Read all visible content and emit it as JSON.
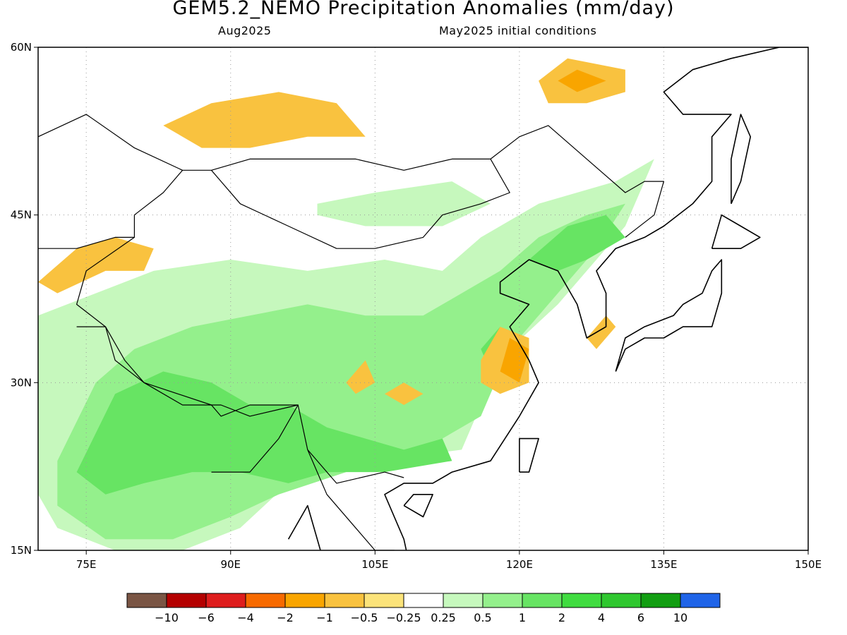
{
  "title": "GEM5.2_NEMO Precipitation Anomalies (mm/day)",
  "subtitle_left": "Aug2025",
  "subtitle_right": "May2025 initial conditions",
  "map": {
    "lon_range": [
      70,
      150
    ],
    "lat_range": [
      15,
      60
    ],
    "x_ticks": [
      {
        "lon": 75,
        "label": "75E"
      },
      {
        "lon": 90,
        "label": "90E"
      },
      {
        "lon": 105,
        "label": "105E"
      },
      {
        "lon": 120,
        "label": "120E"
      },
      {
        "lon": 135,
        "label": "135E"
      },
      {
        "lon": 150,
        "label": "150E"
      }
    ],
    "y_ticks": [
      {
        "lat": 60,
        "label": "60N"
      },
      {
        "lat": 45,
        "label": "45N"
      },
      {
        "lat": 30,
        "label": "30N"
      },
      {
        "lat": 15,
        "label": "15N"
      }
    ],
    "gridlines": "dotted"
  },
  "colorbar": {
    "colors": [
      "#7a5544",
      "#b40000",
      "#de1d1d",
      "#f76a00",
      "#f9a500",
      "#f9c23f",
      "#fbe37a",
      "#ffffff",
      "#c6f8bd",
      "#94f08c",
      "#67e463",
      "#40dc40",
      "#2fc72f",
      "#129e12",
      "#1f64e8"
    ],
    "labels": [
      "-10",
      "-6",
      "-4",
      "-2",
      "-1",
      "-0.5",
      "-0.25",
      "0.25",
      "0.5",
      "1",
      "2",
      "4",
      "6",
      "10"
    ]
  },
  "anomaly_patches": [
    {
      "level": "0.5",
      "color": "#c6f8bd",
      "lonlat": [
        [
          70,
          36
        ],
        [
          76,
          38
        ],
        [
          82,
          40
        ],
        [
          90,
          41
        ],
        [
          98,
          40
        ],
        [
          106,
          41
        ],
        [
          112,
          40
        ],
        [
          116,
          43
        ],
        [
          122,
          46
        ],
        [
          130,
          48
        ],
        [
          134,
          50
        ],
        [
          131,
          44
        ],
        [
          128,
          41
        ],
        [
          124,
          37
        ],
        [
          119,
          33
        ],
        [
          116,
          28
        ],
        [
          114,
          24
        ],
        [
          105,
          23
        ],
        [
          96,
          21
        ],
        [
          91,
          17
        ],
        [
          85,
          15
        ],
        [
          78,
          15
        ],
        [
          72,
          17
        ],
        [
          70,
          20
        ]
      ]
    },
    {
      "level": "0.5",
      "color": "#c6f8bd",
      "lonlat": [
        [
          99,
          46
        ],
        [
          105,
          47
        ],
        [
          113,
          48
        ],
        [
          117,
          46
        ],
        [
          112,
          44
        ],
        [
          104,
          44
        ],
        [
          99,
          45
        ]
      ]
    },
    {
      "level": "1",
      "color": "#94f08c",
      "lonlat": [
        [
          72,
          23
        ],
        [
          76,
          30
        ],
        [
          80,
          33
        ],
        [
          86,
          35
        ],
        [
          92,
          36
        ],
        [
          98,
          37
        ],
        [
          104,
          36
        ],
        [
          110,
          36
        ],
        [
          114,
          38
        ],
        [
          118,
          40
        ],
        [
          122,
          43
        ],
        [
          127,
          45
        ],
        [
          131,
          46
        ],
        [
          128,
          42
        ],
        [
          123,
          37
        ],
        [
          119,
          33
        ],
        [
          116,
          27
        ],
        [
          110,
          24
        ],
        [
          102,
          22
        ],
        [
          95,
          20
        ],
        [
          90,
          18
        ],
        [
          84,
          16
        ],
        [
          77,
          16
        ],
        [
          72,
          19
        ]
      ]
    },
    {
      "level": "2",
      "color": "#67e463",
      "lonlat": [
        [
          74,
          22
        ],
        [
          78,
          29
        ],
        [
          83,
          31
        ],
        [
          88,
          30
        ],
        [
          92,
          28
        ],
        [
          96,
          28
        ],
        [
          100,
          26
        ],
        [
          104,
          25
        ],
        [
          108,
          24
        ],
        [
          112,
          25
        ],
        [
          113,
          23
        ],
        [
          106,
          22
        ],
        [
          100,
          22
        ],
        [
          96,
          21
        ],
        [
          91,
          22
        ],
        [
          86,
          22
        ],
        [
          81,
          21
        ],
        [
          77,
          20
        ]
      ]
    },
    {
      "level": "2",
      "color": "#67e463",
      "lonlat": [
        [
          121,
          41
        ],
        [
          125,
          44
        ],
        [
          129,
          45
        ],
        [
          131,
          43
        ],
        [
          127,
          41
        ],
        [
          124,
          40
        ]
      ]
    },
    {
      "level": "2",
      "color": "#67e463",
      "lonlat": [
        [
          116,
          33
        ],
        [
          118,
          35
        ],
        [
          119,
          33
        ],
        [
          117,
          31
        ]
      ]
    },
    {
      "level": "-0.5",
      "color": "#f9c23f",
      "lonlat": [
        [
          83,
          53
        ],
        [
          88,
          55
        ],
        [
          95,
          56
        ],
        [
          101,
          55
        ],
        [
          104,
          52
        ],
        [
          98,
          52
        ],
        [
          92,
          51
        ],
        [
          87,
          51
        ]
      ]
    },
    {
      "level": "-0.5",
      "color": "#f9c23f",
      "lonlat": [
        [
          122,
          57
        ],
        [
          125,
          59
        ],
        [
          131,
          58
        ],
        [
          131,
          56
        ],
        [
          127,
          55
        ],
        [
          123,
          55
        ]
      ]
    },
    {
      "level": "-0.5",
      "color": "#f9c23f",
      "lonlat": [
        [
          70,
          39
        ],
        [
          74,
          42
        ],
        [
          78,
          43
        ],
        [
          82,
          42
        ],
        [
          81,
          40
        ],
        [
          77,
          40
        ],
        [
          72,
          38
        ]
      ]
    },
    {
      "level": "-0.5",
      "color": "#f9c23f",
      "lonlat": [
        [
          116,
          32
        ],
        [
          118,
          35
        ],
        [
          121,
          34
        ],
        [
          121,
          30
        ],
        [
          118,
          29
        ],
        [
          116,
          30
        ]
      ]
    },
    {
      "level": "-0.5",
      "color": "#f9c23f",
      "lonlat": [
        [
          102,
          30
        ],
        [
          104,
          32
        ],
        [
          105,
          30
        ],
        [
          103,
          29
        ]
      ]
    },
    {
      "level": "-0.5",
      "color": "#f9c23f",
      "lonlat": [
        [
          106,
          29
        ],
        [
          108,
          30
        ],
        [
          110,
          29
        ],
        [
          108,
          28
        ]
      ]
    },
    {
      "level": "-0.5",
      "color": "#f9c23f",
      "lonlat": [
        [
          127,
          34
        ],
        [
          129,
          36
        ],
        [
          130,
          35
        ],
        [
          128,
          33
        ]
      ]
    },
    {
      "level": "-1",
      "color": "#f9a500",
      "lonlat": [
        [
          118,
          31
        ],
        [
          119,
          34
        ],
        [
          121,
          33
        ],
        [
          120,
          30
        ]
      ]
    },
    {
      "level": "-1",
      "color": "#f9a500",
      "lonlat": [
        [
          124,
          57
        ],
        [
          126,
          58
        ],
        [
          129,
          57
        ],
        [
          126,
          56
        ]
      ]
    }
  ],
  "coastlines": [
    {
      "name": "asia-mainland-coast",
      "lonlat": [
        [
          96,
          16
        ],
        [
          98,
          19
        ],
        [
          100,
          13
        ],
        [
          102,
          13
        ],
        [
          105,
          10
        ],
        [
          106,
          12
        ],
        [
          109,
          12
        ],
        [
          108,
          16
        ],
        [
          106,
          20
        ],
        [
          108,
          21
        ],
        [
          111,
          21
        ],
        [
          113,
          22
        ],
        [
          117,
          23
        ],
        [
          120,
          27
        ],
        [
          122,
          30
        ],
        [
          121,
          32
        ],
        [
          119,
          35
        ],
        [
          121,
          37
        ],
        [
          118,
          38
        ],
        [
          118,
          39
        ],
        [
          121,
          41
        ],
        [
          124,
          40
        ],
        [
          126,
          37
        ],
        [
          127,
          34
        ],
        [
          129,
          35
        ],
        [
          129,
          38
        ],
        [
          128,
          40
        ],
        [
          130,
          42
        ],
        [
          133,
          43
        ],
        [
          135,
          44
        ],
        [
          138,
          46
        ],
        [
          140,
          48
        ],
        [
          140,
          52
        ],
        [
          142,
          54
        ],
        [
          137,
          54
        ],
        [
          135,
          56
        ],
        [
          138,
          58
        ],
        [
          142,
          59
        ],
        [
          147,
          60
        ],
        [
          150,
          60
        ]
      ]
    },
    {
      "name": "japan-coast",
      "lonlat": [
        [
          130,
          31
        ],
        [
          131,
          33
        ],
        [
          133,
          34
        ],
        [
          135,
          34
        ],
        [
          137,
          35
        ],
        [
          140,
          35
        ],
        [
          141,
          38
        ],
        [
          141,
          41
        ],
        [
          140,
          40
        ],
        [
          139,
          38
        ],
        [
          137,
          37
        ],
        [
          136,
          36
        ],
        [
          133,
          35
        ],
        [
          131,
          34
        ],
        [
          130,
          31
        ]
      ]
    },
    {
      "name": "hokkaido-coast",
      "lonlat": [
        [
          140,
          42
        ],
        [
          141,
          45
        ],
        [
          143,
          44
        ],
        [
          145,
          43
        ],
        [
          143,
          42
        ],
        [
          140,
          42
        ]
      ]
    },
    {
      "name": "sakhalin-coast",
      "lonlat": [
        [
          142,
          46
        ],
        [
          142,
          50
        ],
        [
          143,
          54
        ],
        [
          144,
          52
        ],
        [
          143,
          48
        ],
        [
          142,
          46
        ]
      ]
    },
    {
      "name": "taiwan-coast",
      "lonlat": [
        [
          120,
          22
        ],
        [
          120,
          25
        ],
        [
          122,
          25
        ],
        [
          121,
          22
        ],
        [
          120,
          22
        ]
      ]
    },
    {
      "name": "hainan-coast",
      "lonlat": [
        [
          108,
          19
        ],
        [
          109,
          20
        ],
        [
          111,
          20
        ],
        [
          110,
          18
        ],
        [
          108,
          19
        ]
      ]
    }
  ],
  "borders": [
    {
      "name": "russia-southern-border",
      "lonlat": [
        [
          70,
          52
        ],
        [
          75,
          54
        ],
        [
          80,
          51
        ],
        [
          85,
          49
        ],
        [
          88,
          49
        ],
        [
          92,
          50
        ],
        [
          97,
          50
        ],
        [
          103,
          50
        ],
        [
          108,
          49
        ],
        [
          113,
          50
        ],
        [
          117,
          50
        ],
        [
          120,
          52
        ],
        [
          123,
          53
        ],
        [
          127,
          50
        ],
        [
          131,
          47
        ],
        [
          133,
          48
        ],
        [
          135,
          48
        ],
        [
          134,
          45
        ],
        [
          131,
          43
        ]
      ]
    },
    {
      "name": "mongolia-china-border",
      "lonlat": [
        [
          88,
          49
        ],
        [
          91,
          46
        ],
        [
          96,
          44
        ],
        [
          101,
          42
        ],
        [
          105,
          42
        ],
        [
          110,
          43
        ],
        [
          112,
          45
        ],
        [
          116,
          46
        ],
        [
          119,
          47
        ],
        [
          117,
          50
        ]
      ]
    },
    {
      "name": "china-west-border",
      "lonlat": [
        [
          80,
          43
        ],
        [
          75,
          40
        ],
        [
          74,
          37
        ],
        [
          77,
          35
        ],
        [
          79,
          32
        ],
        [
          81,
          30
        ],
        [
          85,
          28
        ],
        [
          89,
          28
        ],
        [
          92,
          27
        ],
        [
          97,
          28
        ],
        [
          98,
          24
        ],
        [
          101,
          21
        ],
        [
          106,
          22
        ],
        [
          108,
          21.5
        ]
      ]
    },
    {
      "name": "india-north-border",
      "lonlat": [
        [
          74,
          35
        ],
        [
          77,
          35
        ],
        [
          78,
          32
        ],
        [
          81,
          30
        ],
        [
          88,
          28
        ],
        [
          89,
          27
        ],
        [
          92,
          28
        ],
        [
          97,
          28
        ],
        [
          95,
          25
        ],
        [
          92,
          22
        ],
        [
          90,
          22
        ],
        [
          88,
          22
        ]
      ]
    },
    {
      "name": "central-asia-border",
      "lonlat": [
        [
          70,
          42
        ],
        [
          74,
          42
        ],
        [
          78,
          43
        ],
        [
          80,
          43
        ],
        [
          80,
          45
        ],
        [
          83,
          47
        ],
        [
          85,
          49
        ]
      ]
    },
    {
      "name": "southeast-asia-border",
      "lonlat": [
        [
          98,
          24
        ],
        [
          100,
          20
        ],
        [
          103,
          17
        ],
        [
          105,
          15
        ],
        [
          107,
          15
        ]
      ]
    }
  ]
}
